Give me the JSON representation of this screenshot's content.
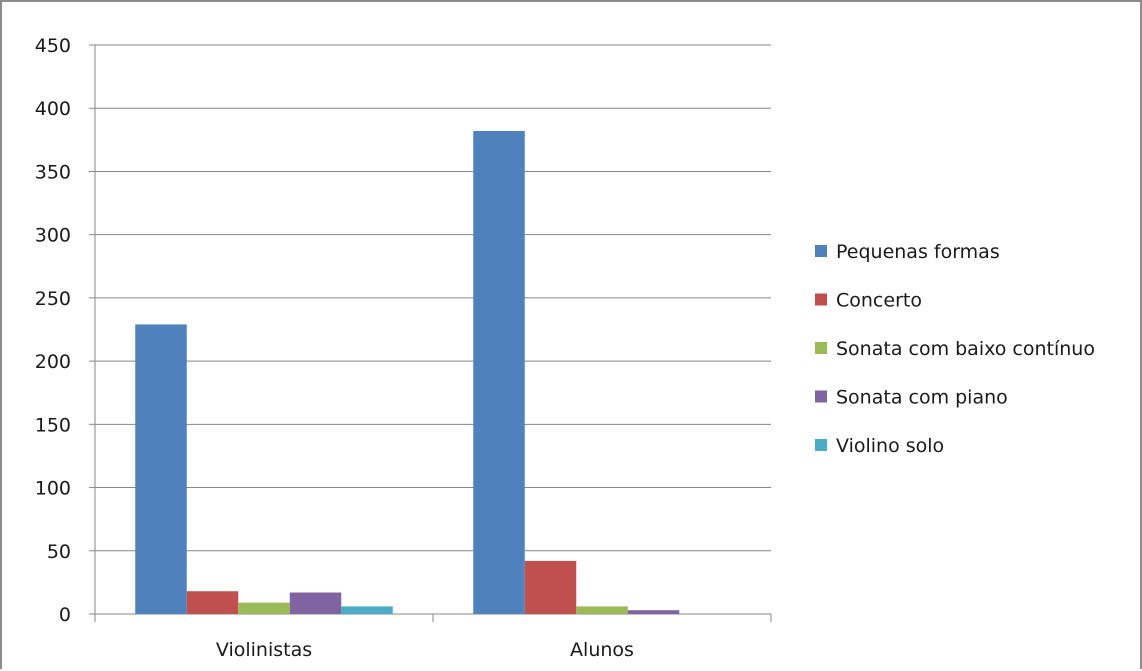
{
  "chart_data": {
    "type": "bar",
    "categories": [
      "Violinistas",
      "Alunos"
    ],
    "series": [
      {
        "name": "Pequenas formas",
        "values": [
          229,
          382
        ],
        "color": "#4F81BD"
      },
      {
        "name": "Concerto",
        "values": [
          18,
          42
        ],
        "color": "#C0504D"
      },
      {
        "name": "Sonata com baixo contínuo",
        "values": [
          9,
          6
        ],
        "color": "#9BBB59"
      },
      {
        "name": "Sonata com piano",
        "values": [
          17,
          3
        ],
        "color": "#8064A2"
      },
      {
        "name": "Violino solo",
        "values": [
          6,
          0
        ],
        "color": "#4BACC6"
      }
    ],
    "yticks": [
      "0",
      "50",
      "100",
      "150",
      "200",
      "250",
      "300",
      "350",
      "400",
      "450"
    ],
    "ylim": [
      0,
      450
    ],
    "grid": true,
    "legend_position": "right",
    "title": "",
    "xlabel": "",
    "ylabel": ""
  }
}
